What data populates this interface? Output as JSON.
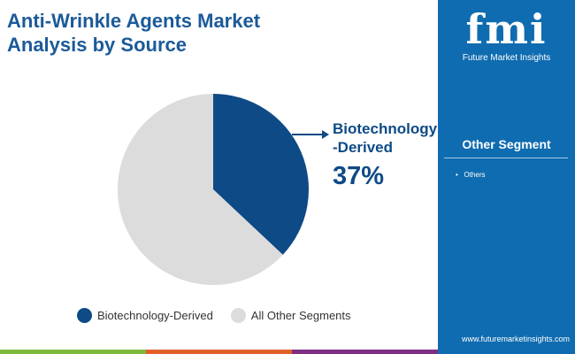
{
  "title": "Anti-Wrinkle Agents Market Analysis by Source",
  "chart_data": {
    "type": "pie",
    "title": "Anti-Wrinkle Agents Market Analysis by Source",
    "slices": [
      {
        "label": "Biotechnology-Derived",
        "value": 37,
        "color": "#0e4a86"
      },
      {
        "label": "All Other Segments",
        "value": 63,
        "color": "#dcdcdc"
      }
    ]
  },
  "callout": {
    "label_line1": "Biotechnology",
    "label_line2": "-Derived",
    "percent": "37%"
  },
  "legend": [
    "Biotechnology-Derived",
    "All Other Segments"
  ],
  "panel": {
    "logo": "fmi",
    "logo_sub": "Future Market Insights",
    "segment_title": "Other Segment",
    "segment_items": [
      "Others"
    ],
    "website": "www.futuremarketinsights.com"
  }
}
